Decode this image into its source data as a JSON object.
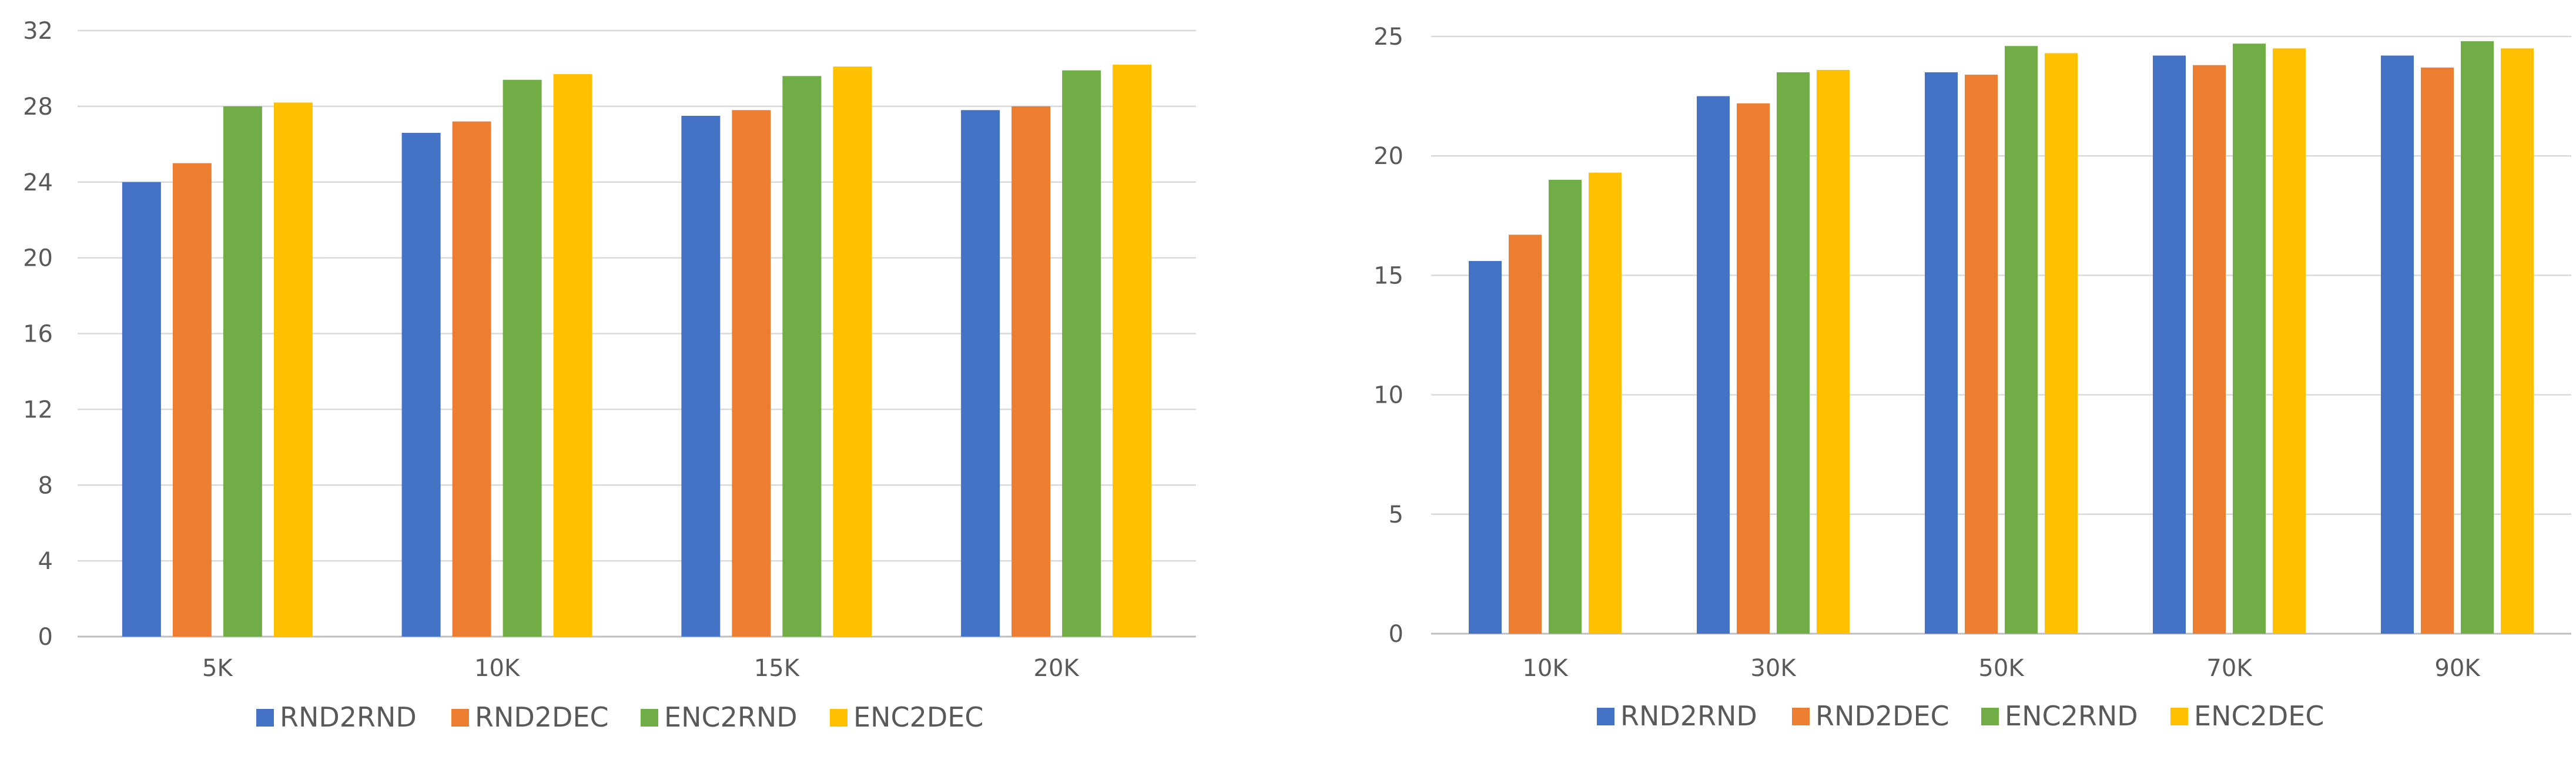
{
  "chart_data": [
    {
      "type": "bar",
      "categories": [
        "5K",
        "10K",
        "15K",
        "20K"
      ],
      "ylim": [
        0,
        32
      ],
      "yticks": [
        0,
        4,
        8,
        12,
        16,
        20,
        24,
        28,
        32
      ],
      "grid": true,
      "legend_position": "bottom",
      "series": [
        {
          "name": "RND2RND",
          "color": "#4472C4",
          "values": [
            24.0,
            26.6,
            27.5,
            27.8
          ]
        },
        {
          "name": "RND2DEC",
          "color": "#ED7D31",
          "values": [
            25.0,
            27.2,
            27.8,
            28.0
          ]
        },
        {
          "name": "ENC2RND",
          "color": "#70AD47",
          "values": [
            28.0,
            29.4,
            29.6,
            29.9
          ]
        },
        {
          "name": "ENC2DEC",
          "color": "#FFC000",
          "values": [
            28.2,
            29.7,
            30.1,
            30.2
          ]
        }
      ]
    },
    {
      "type": "bar",
      "categories": [
        "10K",
        "30K",
        "50K",
        "70K",
        "90K"
      ],
      "ylim": [
        0,
        25
      ],
      "yticks": [
        0,
        5,
        10,
        15,
        20,
        25
      ],
      "grid": true,
      "legend_position": "bottom",
      "series": [
        {
          "name": "RND2RND",
          "color": "#4472C4",
          "values": [
            15.6,
            22.5,
            23.5,
            24.2,
            24.2
          ]
        },
        {
          "name": "RND2DEC",
          "color": "#ED7D31",
          "values": [
            16.7,
            22.2,
            23.4,
            23.8,
            23.7
          ]
        },
        {
          "name": "ENC2RND",
          "color": "#70AD47",
          "values": [
            19.0,
            23.5,
            24.6,
            24.7,
            24.8
          ]
        },
        {
          "name": "ENC2DEC",
          "color": "#FFC000",
          "values": [
            19.3,
            23.6,
            24.3,
            24.5,
            24.5
          ]
        }
      ]
    }
  ]
}
